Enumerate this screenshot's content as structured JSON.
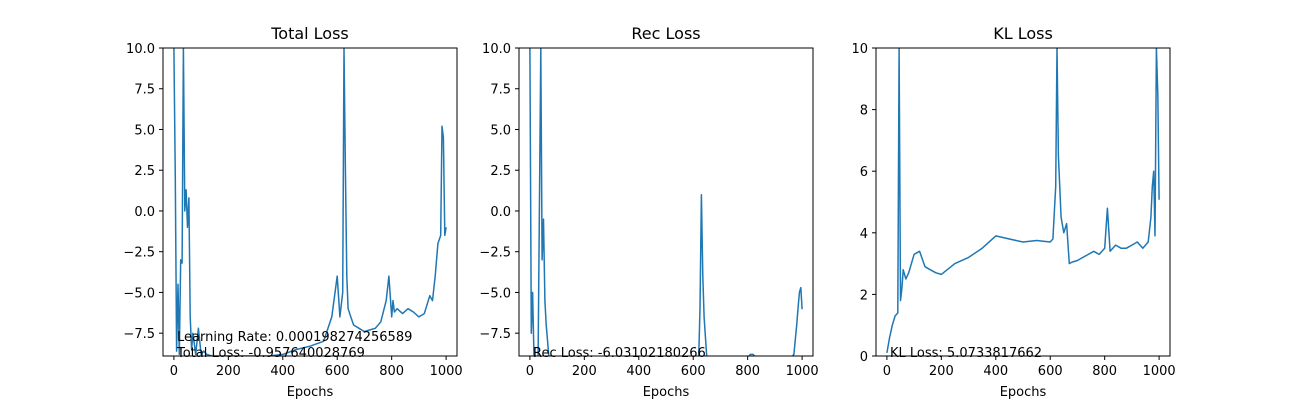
{
  "figure": {
    "series_color": "#1f77b4"
  },
  "chart_data": [
    {
      "type": "line",
      "title": "Total Loss",
      "xlabel": "Epochs",
      "ylabel": "",
      "xlim": [
        -40,
        1040
      ],
      "ylim": [
        -8.9,
        10.0
      ],
      "xticks": [
        0,
        200,
        400,
        600,
        800,
        1000
      ],
      "xtick_labels": [
        "0",
        "200",
        "400",
        "600",
        "800",
        "1000"
      ],
      "yticks": [
        -7.5,
        -5.0,
        -2.5,
        0.0,
        2.5,
        5.0,
        7.5,
        10.0
      ],
      "ytick_labels": [
        "−7.5",
        "−5.0",
        "−2.5",
        "0.0",
        "2.5",
        "5.0",
        "7.5",
        "10.0"
      ],
      "annotations": [
        "Learning Rate: 0.000198274256589",
        "Total Loss: -0.957640028769"
      ],
      "series": [
        {
          "x": [
            0,
            5,
            10,
            15,
            20,
            25,
            30,
            35,
            40,
            45,
            50,
            55,
            60,
            65,
            70,
            80,
            90,
            100,
            110,
            120,
            140,
            160,
            180,
            200,
            250,
            300,
            350,
            400,
            450,
            500,
            550,
            580,
            600,
            610,
            620,
            625,
            630,
            635,
            640,
            650,
            660,
            680,
            700,
            720,
            740,
            760,
            780,
            790,
            800,
            805,
            810,
            820,
            840,
            860,
            880,
            900,
            920,
            940,
            950,
            960,
            970,
            980,
            985,
            990,
            995,
            1000
          ],
          "y": [
            10,
            2,
            -8.6,
            -4.5,
            -8.8,
            -3,
            -3.2,
            10,
            0,
            1.3,
            -1,
            0.8,
            -6.5,
            -8.5,
            -7.5,
            -8.8,
            -7.2,
            -8.8,
            -8.6,
            -8.8,
            -8.9,
            -8.9,
            -8.9,
            -8.9,
            -8.9,
            -8.9,
            -8.9,
            -8.8,
            -8.5,
            -8.3,
            -8,
            -6.5,
            -4,
            -6.5,
            -5,
            10,
            2.5,
            -4,
            -6,
            -6.5,
            -7,
            -7.2,
            -7.4,
            -7.3,
            -7.2,
            -6.8,
            -5.5,
            -4,
            -6.5,
            -5.5,
            -6.2,
            -6,
            -6.3,
            -6,
            -6.2,
            -6.5,
            -6.3,
            -5.2,
            -5.5,
            -4,
            -2,
            -1.5,
            5.2,
            4.5,
            -1.5,
            -1.0
          ]
        }
      ]
    },
    {
      "type": "line",
      "title": "Rec Loss",
      "xlabel": "Epochs",
      "ylabel": "",
      "xlim": [
        -40,
        1040
      ],
      "ylim": [
        -8.9,
        10.0
      ],
      "xticks": [
        0,
        200,
        400,
        600,
        800,
        1000
      ],
      "xtick_labels": [
        "0",
        "200",
        "400",
        "600",
        "800",
        "1000"
      ],
      "yticks": [
        -7.5,
        -5.0,
        -2.5,
        0.0,
        2.5,
        5.0,
        7.5,
        10.0
      ],
      "ytick_labels": [
        "−7.5",
        "−5.0",
        "−2.5",
        "0.0",
        "2.5",
        "5.0",
        "7.5",
        "10.0"
      ],
      "annotations": [
        "Rec Loss: -6.03102180266"
      ],
      "series": [
        {
          "x": [
            0,
            5,
            10,
            15,
            20,
            25,
            30,
            40,
            45,
            50,
            55,
            60,
            65,
            70,
            75,
            80,
            90,
            100,
            200,
            300,
            400,
            500,
            600,
            620,
            625,
            630,
            635,
            640,
            650,
            660,
            700,
            800,
            810,
            815,
            820,
            830,
            900,
            960,
            970,
            980,
            985,
            990,
            995,
            1000
          ],
          "y": [
            10,
            -7.5,
            -5,
            -9,
            -8.9,
            -9,
            -9,
            10,
            -3,
            -0.5,
            -5.5,
            -7,
            -8,
            -9,
            -8.9,
            -9,
            -9,
            -9,
            -9,
            -9,
            -9,
            -9,
            -9,
            -9,
            -6,
            1,
            -4,
            -6.5,
            -9,
            -9,
            -9,
            -9,
            -8.8,
            -8.8,
            -8.8,
            -9,
            -9,
            -9,
            -8.8,
            -7,
            -6,
            -5,
            -4.7,
            -6.03
          ]
        }
      ]
    },
    {
      "type": "line",
      "title": "KL Loss",
      "xlabel": "Epochs",
      "ylabel": "",
      "xlim": [
        -40,
        1040
      ],
      "ylim": [
        0,
        10
      ],
      "xticks": [
        0,
        200,
        400,
        600,
        800,
        1000
      ],
      "xtick_labels": [
        "0",
        "200",
        "400",
        "600",
        "800",
        "1000"
      ],
      "yticks": [
        0,
        2,
        4,
        6,
        8,
        10
      ],
      "ytick_labels": [
        "0",
        "2",
        "4",
        "6",
        "8",
        "10"
      ],
      "annotations": [
        "KL Loss: 5.0733817662"
      ],
      "series": [
        {
          "x": [
            0,
            10,
            20,
            30,
            40,
            45,
            50,
            55,
            60,
            70,
            80,
            90,
            100,
            110,
            120,
            140,
            160,
            180,
            200,
            250,
            300,
            350,
            400,
            450,
            500,
            550,
            600,
            610,
            620,
            625,
            630,
            640,
            650,
            660,
            670,
            680,
            700,
            720,
            740,
            760,
            780,
            800,
            810,
            820,
            840,
            860,
            880,
            900,
            920,
            940,
            960,
            970,
            975,
            980,
            985,
            990,
            995,
            1000
          ],
          "y": [
            0.1,
            0.6,
            1.0,
            1.3,
            1.4,
            10,
            1.8,
            2.2,
            2.8,
            2.5,
            2.7,
            3.0,
            3.3,
            3.35,
            3.4,
            2.9,
            2.8,
            2.7,
            2.65,
            3.0,
            3.2,
            3.5,
            3.9,
            3.8,
            3.7,
            3.75,
            3.7,
            3.8,
            5.5,
            10,
            6.5,
            4.5,
            4.0,
            4.3,
            3.0,
            3.05,
            3.1,
            3.2,
            3.3,
            3.4,
            3.3,
            3.5,
            4.8,
            3.4,
            3.6,
            3.5,
            3.5,
            3.6,
            3.7,
            3.5,
            3.7,
            4.5,
            5.5,
            6.0,
            3.9,
            10,
            8.5,
            5.07
          ]
        }
      ]
    }
  ]
}
